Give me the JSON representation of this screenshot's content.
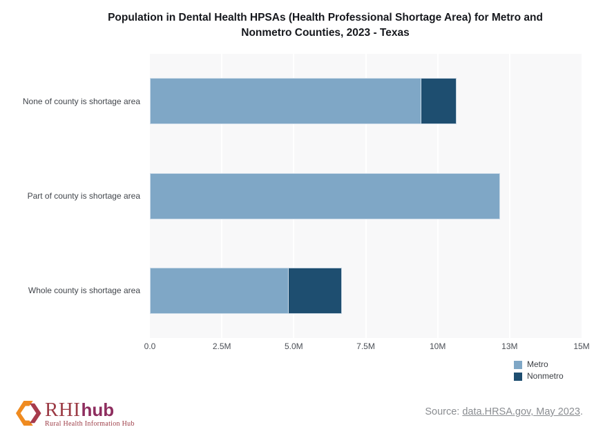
{
  "title": {
    "line1": "Population in Dental Health HPSAs (Health Professional Shortage Area) for Metro and",
    "line2": "Nonmetro Counties, 2023 - Texas",
    "full": "Population in Dental Health HPSAs (Health Professional Shortage Area) for Metro and Nonmetro Counties, 2023 - Texas"
  },
  "chart_data": {
    "type": "bar",
    "orientation": "horizontal",
    "stacked": true,
    "title": "Population in Dental Health HPSAs (Health Professional Shortage Area) for Metro and Nonmetro Counties, 2023 - Texas",
    "categories": [
      "None of county is shortage area",
      "Part of county is shortage area",
      "Whole county is shortage area"
    ],
    "series": [
      {
        "name": "Metro",
        "color": "#7fa7c6",
        "values_millions": [
          9.43,
          12.17,
          4.82
        ]
      },
      {
        "name": "Nonmetro",
        "color": "#1e4e70",
        "values_millions": [
          1.22,
          0,
          1.85
        ]
      }
    ],
    "totals_millions": [
      10.65,
      12.17,
      6.67
    ],
    "value_unit": "population (millions)",
    "x_axis": {
      "min": 0,
      "max_millions": 15,
      "tick_values_millions": [
        0,
        2.5,
        5,
        7.5,
        10,
        12.5,
        15
      ],
      "tick_labels": [
        "0.0",
        "2.5M",
        "5.0M",
        "7.5M",
        "10M",
        "13M",
        "15M"
      ]
    },
    "legend": {
      "position": "bottom-right",
      "entries": [
        "Metro",
        "Nonmetro"
      ]
    },
    "grid": "vertical white gridlines on light gray plot background",
    "plot_background": "#f8f8f9"
  },
  "footer": {
    "logo": {
      "rhi": "RHI",
      "hub": "hub",
      "tagline": "Rural Health Information Hub"
    },
    "source_prefix": "Source: ",
    "source_link": "data.HRSA.gov, May 2023",
    "source_suffix": "."
  },
  "colors": {
    "metro": "#7fa7c6",
    "nonmetro": "#1e4e70",
    "plot_bg": "#f8f8f9",
    "gridline": "#ffffff",
    "title_text": "#16181d",
    "axis_text": "#4a4e55",
    "source_text": "#8a8d91",
    "logo_red": "#9c3b45",
    "logo_orange": "#ef8b20",
    "logo_magenta": "#8e2e5f"
  }
}
